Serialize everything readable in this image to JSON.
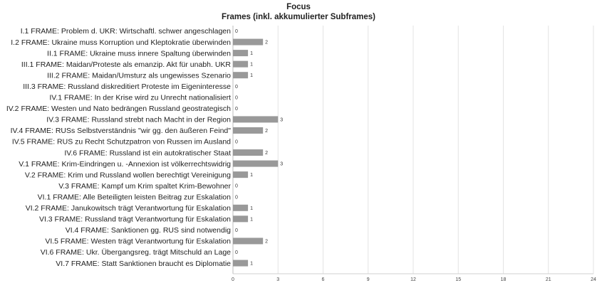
{
  "chart_data": {
    "type": "bar",
    "orientation": "horizontal",
    "title": "Focus",
    "subtitle": "Frames (inkl. akkumulierter Subframes)",
    "categories": [
      "I.1 FRAME: Problem d. UKR: Wirtschaftl. schwer angeschlagen",
      "I.2 FRAME: Ukraine muss Korruption und Kleptokratie überwinden",
      "II.1 FRAME: Ukraine muss innere Spaltung überwinden",
      "III.1 FRAME: Maidan/Proteste als emanzip. Akt für unabh. UKR",
      "III.2 FRAME: Maidan/Umsturz als ungewisses Szenario",
      "III.3 FRAME: Russland diskreditiert Proteste im Eigeninteresse",
      "IV.1 FRAME: In der Krise wird zu Unrecht nationalisiert",
      "IV.2 FRAME: Westen und Nato bedrängen Russland geostrategisch",
      "IV.3 FRAME: Russland strebt nach Macht in der Region",
      "IV.4 FRAME: RUSs Selbstverständnis \"wir gg. den äußeren Feind\"",
      "IV.5 FRAME: RUS zu Recht Schutzpatron von Russen im Ausland",
      "IV.6 FRAME: Russland ist ein autokratischer Staat",
      "V.1 FRAME: Krim-Eindringen u. -Annexion ist völkerrechtswidrig",
      "V.2 FRAME: Krim und Russland wollen berechtigt Vereinigung",
      "V.3 FRAME: Kampf um Krim spaltet Krim-Bewohner",
      "VI.1 FRAME: Alle Beteiligten leisten Beitrag zur Eskalation",
      "VI.2 FRAME: Janukowitsch trägt Verantwortung für Eskalation",
      "VI.3 FRAME: Russland trägt Verantwortung für Eskalation",
      "VI.4 FRAME: Sanktionen gg. RUS sind notwendig",
      "VI.5 FRAME: Westen trägt Verantwortung für Eskalation",
      "VI.6 FRAME: Ukr. Übergangsreg. trägt Mitschuld an Lage",
      "VI.7 FRAME: Statt Sanktionen braucht es Diplomatie"
    ],
    "values": [
      0,
      2,
      1,
      1,
      1,
      0,
      0,
      0,
      3,
      2,
      0,
      2,
      3,
      1,
      0,
      0,
      1,
      1,
      0,
      2,
      0,
      1
    ],
    "xlim": [
      0,
      24
    ],
    "xticks": [
      0,
      3,
      6,
      9,
      12,
      15,
      18,
      21,
      24
    ],
    "grid": true,
    "bar_color": "#999999"
  }
}
